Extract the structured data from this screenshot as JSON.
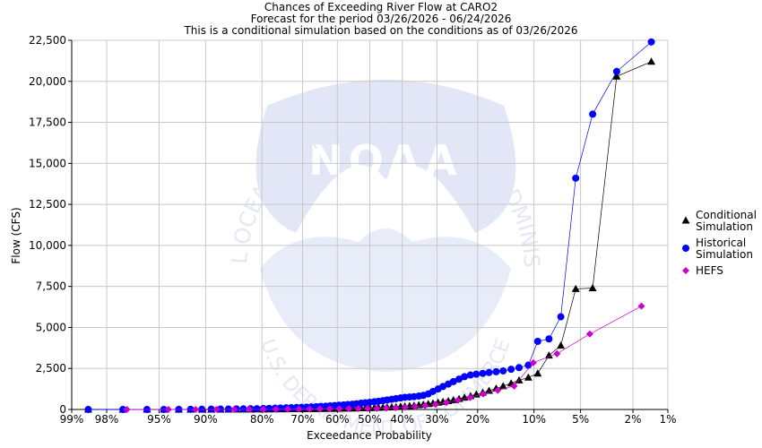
{
  "chart_data": {
    "type": "scatter",
    "title": "Chances of Exceeding River Flow at CARO2",
    "subtitle": "Forecast for the period 03/26/2026 - 06/24/2026",
    "subtitle2": "This is a conditional simulation based on the conditions as of 03/26/2026",
    "xlabel": "Exceedance Probability",
    "ylabel": "Flow (CFS)",
    "x_scale": "normal-probability",
    "x_ticks": [
      {
        "p": 99,
        "label": "99%"
      },
      {
        "p": 98,
        "label": "98%"
      },
      {
        "p": 95,
        "label": "95%"
      },
      {
        "p": 90,
        "label": "90%"
      },
      {
        "p": 80,
        "label": "80%"
      },
      {
        "p": 70,
        "label": "70%"
      },
      {
        "p": 60,
        "label": "60%"
      },
      {
        "p": 50,
        "label": "50%"
      },
      {
        "p": 40,
        "label": "40%"
      },
      {
        "p": 30,
        "label": "30%"
      },
      {
        "p": 20,
        "label": "20%"
      },
      {
        "p": 10,
        "label": "10%"
      },
      {
        "p": 5,
        "label": "5%"
      },
      {
        "p": 2,
        "label": "2%"
      },
      {
        "p": 1,
        "label": "1%"
      }
    ],
    "y_ticks": [
      {
        "v": 0,
        "label": "0"
      },
      {
        "v": 2500,
        "label": "2,500"
      },
      {
        "v": 5000,
        "label": "5,000"
      },
      {
        "v": 7500,
        "label": "7,500"
      },
      {
        "v": 10000,
        "label": "10,000"
      },
      {
        "v": 12500,
        "label": "12,500"
      },
      {
        "v": 15000,
        "label": "15,000"
      },
      {
        "v": 17500,
        "label": "17,500"
      },
      {
        "v": 20000,
        "label": "20,000"
      },
      {
        "v": 22500,
        "label": "22,500"
      }
    ],
    "xlim": [
      99,
      1
    ],
    "ylim": [
      0,
      22500
    ],
    "grid": true,
    "legend_position": "right",
    "series": [
      {
        "name": "Conditional Simulation",
        "legend_lines": [
          "Conditional",
          "Simulation"
        ],
        "marker": "triangle",
        "color": "#000000",
        "points": [
          [
            98.6,
            0
          ],
          [
            97.3,
            0
          ],
          [
            95.9,
            0
          ],
          [
            94.6,
            0
          ],
          [
            93.2,
            0
          ],
          [
            91.9,
            0
          ],
          [
            90.5,
            0
          ],
          [
            89.2,
            0
          ],
          [
            87.8,
            0
          ],
          [
            86.5,
            10
          ],
          [
            85.1,
            10
          ],
          [
            83.8,
            10
          ],
          [
            82.4,
            10
          ],
          [
            81.1,
            15
          ],
          [
            79.7,
            15
          ],
          [
            78.4,
            15
          ],
          [
            77.0,
            20
          ],
          [
            75.7,
            20
          ],
          [
            74.3,
            20
          ],
          [
            73.0,
            25
          ],
          [
            71.6,
            25
          ],
          [
            70.3,
            30
          ],
          [
            68.9,
            30
          ],
          [
            67.6,
            35
          ],
          [
            66.2,
            35
          ],
          [
            64.9,
            40
          ],
          [
            63.5,
            45
          ],
          [
            62.2,
            45
          ],
          [
            60.8,
            50
          ],
          [
            59.5,
            55
          ],
          [
            58.1,
            60
          ],
          [
            56.8,
            65
          ],
          [
            55.4,
            70
          ],
          [
            54.1,
            75
          ],
          [
            52.7,
            80
          ],
          [
            51.4,
            85
          ],
          [
            50.0,
            90
          ],
          [
            48.6,
            100
          ],
          [
            47.3,
            110
          ],
          [
            45.9,
            120
          ],
          [
            44.6,
            130
          ],
          [
            43.2,
            140
          ],
          [
            41.9,
            160
          ],
          [
            40.5,
            180
          ],
          [
            39.2,
            200
          ],
          [
            37.8,
            220
          ],
          [
            36.5,
            240
          ],
          [
            35.1,
            270
          ],
          [
            33.8,
            300
          ],
          [
            32.4,
            340
          ],
          [
            31.1,
            380
          ],
          [
            29.7,
            420
          ],
          [
            28.4,
            470
          ],
          [
            27.0,
            520
          ],
          [
            25.7,
            580
          ],
          [
            24.3,
            650
          ],
          [
            23.0,
            730
          ],
          [
            21.6,
            820
          ],
          [
            20.3,
            920
          ],
          [
            18.9,
            1030
          ],
          [
            17.6,
            1150
          ],
          [
            16.2,
            1280
          ],
          [
            14.9,
            1430
          ],
          [
            13.5,
            1600
          ],
          [
            12.2,
            1780
          ],
          [
            10.8,
            1950
          ],
          [
            9.5,
            2200
          ],
          [
            8.1,
            3300
          ],
          [
            6.8,
            3900
          ],
          [
            5.4,
            7350
          ],
          [
            4.1,
            7400
          ],
          [
            2.7,
            20300
          ],
          [
            1.4,
            21200
          ]
        ]
      },
      {
        "name": "Historical Simulation",
        "legend_lines": [
          "Historical",
          "Simulation"
        ],
        "marker": "circle",
        "color": "#0000ff",
        "points": [
          [
            98.6,
            0
          ],
          [
            97.3,
            0
          ],
          [
            95.9,
            0
          ],
          [
            94.6,
            0
          ],
          [
            93.2,
            10
          ],
          [
            91.9,
            10
          ],
          [
            90.5,
            15
          ],
          [
            89.2,
            20
          ],
          [
            87.8,
            25
          ],
          [
            86.5,
            30
          ],
          [
            85.1,
            35
          ],
          [
            83.8,
            40
          ],
          [
            82.4,
            45
          ],
          [
            81.1,
            50
          ],
          [
            79.7,
            60
          ],
          [
            78.4,
            70
          ],
          [
            77.0,
            80
          ],
          [
            75.7,
            90
          ],
          [
            74.3,
            100
          ],
          [
            73.0,
            110
          ],
          [
            71.6,
            120
          ],
          [
            70.3,
            130
          ],
          [
            68.9,
            140
          ],
          [
            67.6,
            155
          ],
          [
            66.2,
            170
          ],
          [
            64.9,
            185
          ],
          [
            63.5,
            200
          ],
          [
            62.2,
            220
          ],
          [
            60.8,
            240
          ],
          [
            59.5,
            260
          ],
          [
            58.1,
            280
          ],
          [
            56.8,
            300
          ],
          [
            55.4,
            320
          ],
          [
            54.1,
            350
          ],
          [
            52.7,
            380
          ],
          [
            51.4,
            410
          ],
          [
            50.0,
            440
          ],
          [
            48.6,
            470
          ],
          [
            47.3,
            500
          ],
          [
            45.9,
            540
          ],
          [
            44.6,
            580
          ],
          [
            43.2,
            620
          ],
          [
            41.9,
            660
          ],
          [
            40.5,
            700
          ],
          [
            39.2,
            740
          ],
          [
            37.8,
            760
          ],
          [
            36.5,
            780
          ],
          [
            35.1,
            820
          ],
          [
            33.8,
            860
          ],
          [
            32.4,
            950
          ],
          [
            31.1,
            1100
          ],
          [
            29.7,
            1250
          ],
          [
            28.4,
            1400
          ],
          [
            27.0,
            1550
          ],
          [
            25.7,
            1700
          ],
          [
            24.3,
            1850
          ],
          [
            23.0,
            2000
          ],
          [
            21.6,
            2100
          ],
          [
            20.3,
            2150
          ],
          [
            18.9,
            2200
          ],
          [
            17.6,
            2250
          ],
          [
            16.2,
            2300
          ],
          [
            14.9,
            2350
          ],
          [
            13.5,
            2450
          ],
          [
            12.2,
            2550
          ],
          [
            10.8,
            2700
          ],
          [
            9.5,
            4150
          ],
          [
            8.1,
            4300
          ],
          [
            6.8,
            5650
          ],
          [
            5.4,
            14100
          ],
          [
            4.1,
            18000
          ],
          [
            2.7,
            20600
          ],
          [
            1.4,
            22400
          ]
        ]
      },
      {
        "name": "HEFS",
        "legend_lines": [
          "HEFS"
        ],
        "marker": "diamond",
        "color": "#cc00cc",
        "points": [
          [
            97.1,
            0
          ],
          [
            94.2,
            0
          ],
          [
            91.3,
            0
          ],
          [
            88.4,
            5
          ],
          [
            85.5,
            5
          ],
          [
            82.6,
            10
          ],
          [
            79.7,
            10
          ],
          [
            76.8,
            15
          ],
          [
            73.9,
            20
          ],
          [
            71.0,
            20
          ],
          [
            68.1,
            25
          ],
          [
            65.2,
            30
          ],
          [
            62.3,
            35
          ],
          [
            59.4,
            40
          ],
          [
            56.5,
            45
          ],
          [
            53.6,
            50
          ],
          [
            50.7,
            60
          ],
          [
            47.8,
            70
          ],
          [
            44.9,
            80
          ],
          [
            42.0,
            100
          ],
          [
            39.1,
            130
          ],
          [
            36.2,
            170
          ],
          [
            33.3,
            230
          ],
          [
            30.4,
            310
          ],
          [
            27.5,
            420
          ],
          [
            24.6,
            560
          ],
          [
            21.7,
            730
          ],
          [
            18.8,
            940
          ],
          [
            15.9,
            1170
          ],
          [
            13.0,
            1430
          ],
          [
            10.1,
            2850
          ],
          [
            7.2,
            3400
          ],
          [
            4.3,
            4600
          ],
          [
            1.7,
            6300
          ]
        ]
      }
    ]
  },
  "watermark": {
    "agency_arc": "NATIONAL OCEANIC AND ATMOSPHERIC ADMINISTRATION",
    "dept_arc": "U.S. DEPARTMENT OF COMMERCE",
    "logo_text": "NOAA"
  },
  "colors": {
    "grid": "#c8c8c8",
    "watermark": "#e6ebf7"
  }
}
